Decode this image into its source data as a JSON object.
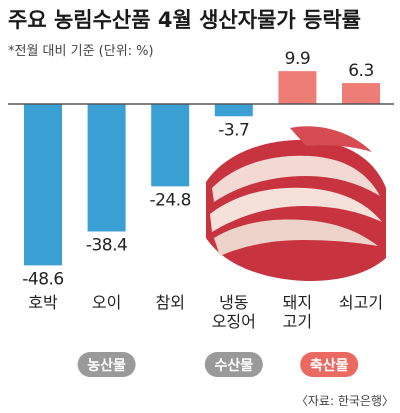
{
  "chart_data": {
    "type": "bar",
    "title": "주요 농림수산품 4월 생산자물가 등락률",
    "subtitle": "*전월 대비 기준 (단위: %)",
    "categories": [
      [
        "호박"
      ],
      [
        "오이"
      ],
      [
        "참외"
      ],
      [
        "냉동",
        "오징어"
      ],
      [
        "돼지",
        "고기"
      ],
      [
        "쇠고기"
      ]
    ],
    "values": [
      -48.6,
      -38.4,
      -24.8,
      -3.7,
      9.9,
      6.3
    ],
    "value_labels": [
      "-48.6",
      "-38.4",
      "-24.8",
      "-3.7",
      "9.9",
      "6.3"
    ],
    "groups": [
      {
        "label": "농산물",
        "start": 0,
        "end": 2,
        "color": "#9a9a9a"
      },
      {
        "label": "수산물",
        "start": 3,
        "end": 3,
        "color": "#9a9a9a"
      },
      {
        "label": "축산물",
        "start": 4,
        "end": 5,
        "color": "#ea6a62"
      }
    ],
    "colors": {
      "negative": "#3a9fd3",
      "positive": "#ee7d76",
      "baseline": "#555555"
    },
    "source": "〈자료: 한국은행〉",
    "illustration": "pork-belly-photo"
  }
}
